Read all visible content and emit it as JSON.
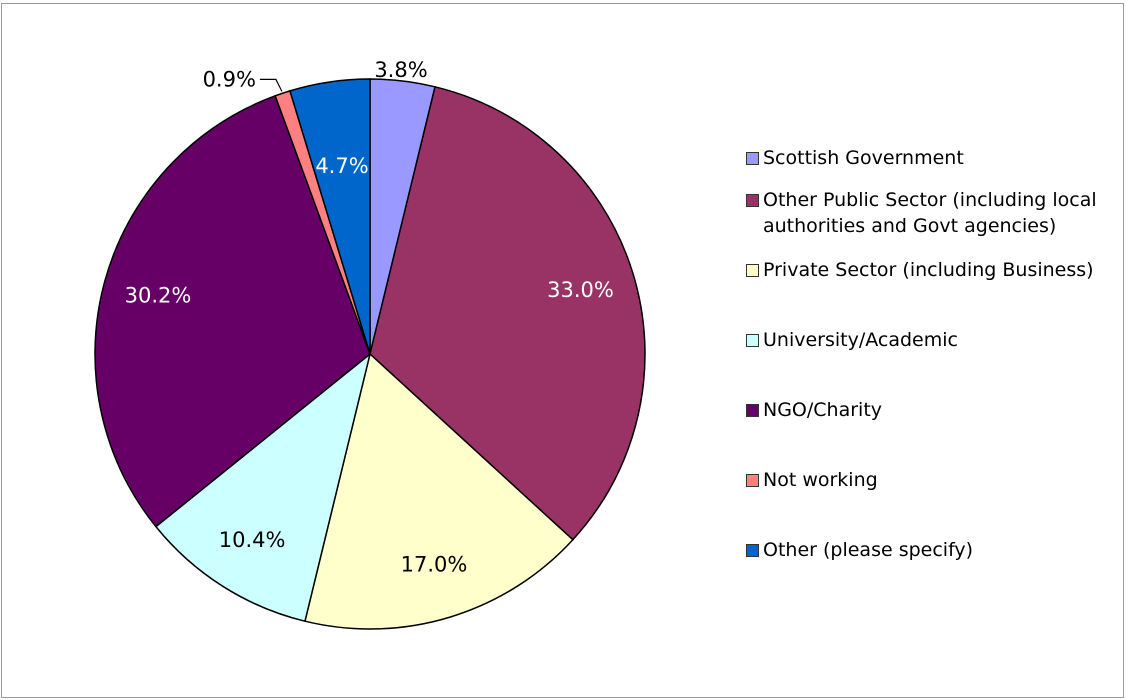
{
  "chart_data": {
    "type": "pie",
    "title": "",
    "start_angle_deg": 0,
    "direction": "clockwise",
    "legend_position": "right",
    "slices": [
      {
        "label": "Scottish Government",
        "value": 3.8,
        "value_label": "3.8%",
        "color": "#9999ff",
        "label_color": "#000000"
      },
      {
        "label": "Other Public Sector (including local\nauthorities and Govt agencies)",
        "value": 33.0,
        "value_label": "33.0%",
        "color": "#993366",
        "label_color": "#ffffff"
      },
      {
        "label": "Private Sector (including Business)",
        "value": 17.0,
        "value_label": "17.0%",
        "color": "#ffffcc",
        "label_color": "#000000"
      },
      {
        "label": "University/Academic",
        "value": 10.4,
        "value_label": "10.4%",
        "color": "#ccffff",
        "label_color": "#000000"
      },
      {
        "label": "NGO/Charity",
        "value": 30.2,
        "value_label": "30.2%",
        "color": "#660066",
        "label_color": "#ffffff"
      },
      {
        "label": "Not working",
        "value": 0.9,
        "value_label": "0.9%",
        "color": "#ff8080",
        "label_color": "#000000"
      },
      {
        "label": "Other (please specify)",
        "value": 4.7,
        "value_label": "4.7%",
        "color": "#0066cc",
        "label_color": "#ffffff"
      }
    ]
  }
}
